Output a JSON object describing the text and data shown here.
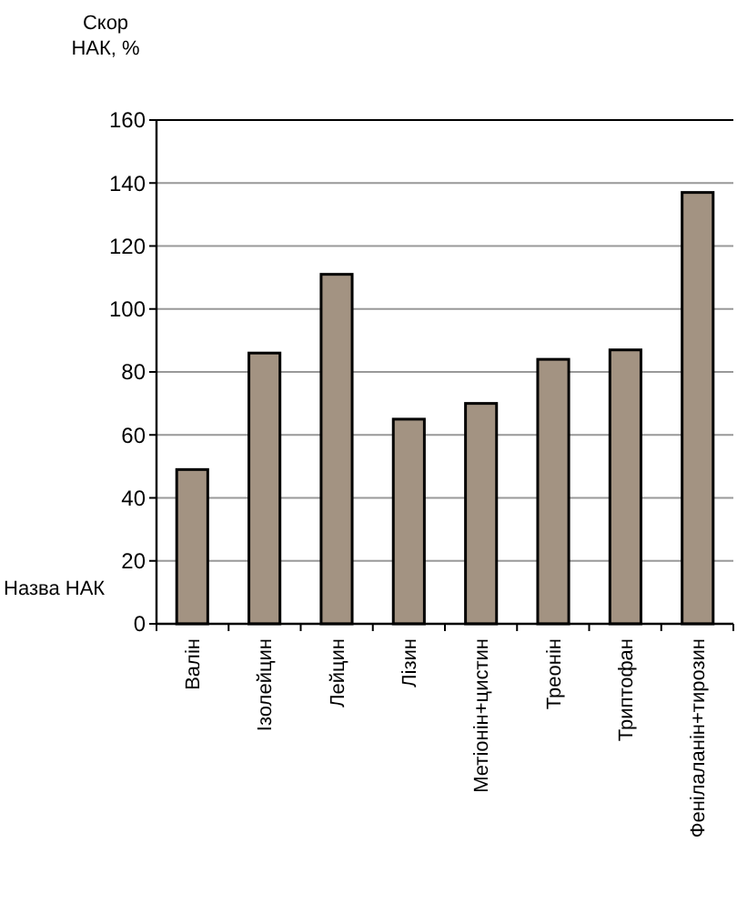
{
  "chart_data": {
    "type": "bar",
    "ylabel": "Скор НАК, %",
    "xlabel": "Назва НАК",
    "categories": [
      "Валін",
      "Ізолейцин",
      "Лейцин",
      "Лізин",
      "Метіонін+цистин",
      "Треонін",
      "Триптофан",
      "Фенілаланін+тирозин"
    ],
    "values": [
      49,
      86,
      111,
      65,
      70,
      84,
      87,
      137
    ],
    "color": "#a39382",
    "ylim": [
      0,
      160
    ],
    "yticks": [
      0,
      20,
      40,
      60,
      80,
      100,
      120,
      140,
      160
    ],
    "grid": "y"
  }
}
